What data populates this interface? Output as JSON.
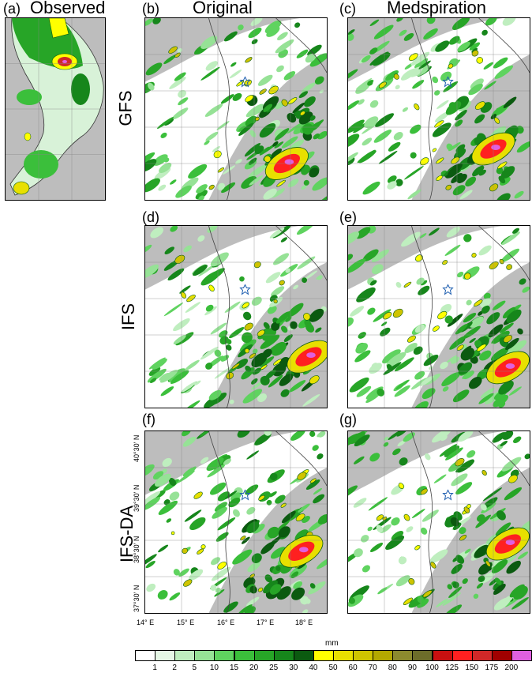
{
  "figure": {
    "column_titles": [
      "Observed",
      "Original",
      "Medspiration"
    ],
    "row_titles": [
      "GFS",
      "IFS",
      "IFS-DA"
    ],
    "panel_labels": [
      "(a)",
      "(b)",
      "(c)",
      "(d)",
      "(e)",
      "(f)",
      "(g)"
    ]
  },
  "axes": {
    "x_ticks": [
      "14° E",
      "15° E",
      "16° E",
      "17° E",
      "18° E"
    ],
    "y_ticks": [
      "40°30' N",
      "39°30' N",
      "38°30' N",
      "37°30' N"
    ]
  },
  "colorbar": {
    "unit": "mm",
    "ticks": [
      "1",
      "2",
      "5",
      "10",
      "15",
      "20",
      "25",
      "30",
      "40",
      "50",
      "60",
      "70",
      "80",
      "90",
      "100",
      "125",
      "150",
      "175",
      "200"
    ],
    "colors": [
      "#ffffff",
      "#e6f7e6",
      "#bfeebf",
      "#96e296",
      "#5fd35f",
      "#3bbf3b",
      "#27a527",
      "#16861b",
      "#0b5a10",
      "#ffff00",
      "#e8e000",
      "#cfc400",
      "#b3a800",
      "#8c8a2e",
      "#6d6d2a",
      "#c81010",
      "#ff2020",
      "#d02828",
      "#a00000",
      "#e060e0"
    ]
  }
}
